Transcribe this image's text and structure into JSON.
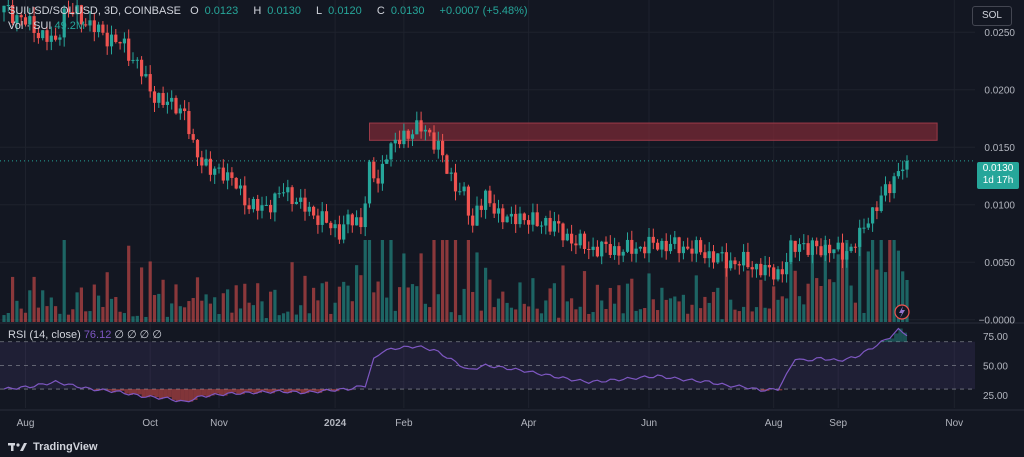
{
  "header": {
    "symbol": "SUIUSD/SOLUSD, 3D, COINBASE",
    "open_label": "O",
    "open": "0.0123",
    "high_label": "H",
    "high": "0.0130",
    "low_label": "L",
    "low": "0.0120",
    "close_label": "C",
    "close": "0.0130",
    "change": "+0.0007 (+5.48%)",
    "vol_label": "Vol · SUI",
    "vol_value": "49.2M"
  },
  "currency_button": "SOL",
  "price_badge": {
    "price": "0.0130",
    "countdown": "1d 17h"
  },
  "rsi_legend": {
    "label": "RSI (14, close)",
    "value": "76.12",
    "extras": "∅ ∅ ∅ ∅"
  },
  "brand": "TradingView",
  "colors": {
    "up": "#26a69a",
    "down": "#ef5350",
    "rsi": "#7e57c2",
    "zone": "#7a2a36",
    "background": "#131722"
  },
  "chart_data": [
    {
      "type": "candlestick",
      "title": "SUIUSD/SOLUSD, 3D, COINBASE",
      "y_ticks": [
        "0.0250",
        "0.0200",
        "0.0150",
        "0.0100",
        "0.0050",
        "−0.0000"
      ],
      "ylim": [
        -0.0002,
        0.0278
      ],
      "x_ticks": [
        "Aug",
        "Oct",
        "Nov",
        "2024",
        "Feb",
        "Apr",
        "Jun",
        "Aug",
        "Sep",
        "Nov"
      ],
      "resistance_zone": {
        "from": 0.0156,
        "to": 0.0171
      },
      "close_anchors": [
        [
          0,
          0.027
        ],
        [
          4,
          0.0262
        ],
        [
          8,
          0.025
        ],
        [
          12,
          0.024
        ],
        [
          14,
          0.0268
        ],
        [
          17,
          0.0266
        ],
        [
          20,
          0.0256
        ],
        [
          24,
          0.0246
        ],
        [
          28,
          0.0238
        ],
        [
          31,
          0.0222
        ],
        [
          34,
          0.02
        ],
        [
          37,
          0.0188
        ],
        [
          40,
          0.0188
        ],
        [
          42,
          0.0178
        ],
        [
          44,
          0.015
        ],
        [
          46,
          0.014
        ],
        [
          48,
          0.0128
        ],
        [
          51,
          0.013
        ],
        [
          54,
          0.0116
        ],
        [
          57,
          0.01
        ],
        [
          60,
          0.0096
        ],
        [
          63,
          0.0105
        ],
        [
          65,
          0.0112
        ],
        [
          67,
          0.0108
        ],
        [
          69,
          0.01
        ],
        [
          71,
          0.0094
        ],
        [
          74,
          0.0088
        ],
        [
          76,
          0.008
        ],
        [
          78,
          0.0078
        ],
        [
          80,
          0.0086
        ],
        [
          83,
          0.0084
        ],
        [
          85,
          0.013
        ],
        [
          87,
          0.0118
        ],
        [
          89,
          0.0148
        ],
        [
          91,
          0.0152
        ],
        [
          93,
          0.016
        ],
        [
          95,
          0.0165
        ],
        [
          97,
          0.0166
        ],
        [
          99,
          0.0162
        ],
        [
          101,
          0.015
        ],
        [
          103,
          0.013
        ],
        [
          105,
          0.0118
        ],
        [
          107,
          0.0108
        ],
        [
          109,
          0.008
        ],
        [
          110,
          0.01
        ],
        [
          112,
          0.0105
        ],
        [
          114,
          0.0095
        ],
        [
          116,
          0.0092
        ],
        [
          118,
          0.0085
        ],
        [
          120,
          0.009
        ],
        [
          122,
          0.0088
        ],
        [
          124,
          0.0082
        ],
        [
          126,
          0.0086
        ],
        [
          128,
          0.0082
        ],
        [
          130,
          0.0074
        ],
        [
          132,
          0.007
        ],
        [
          134,
          0.0066
        ],
        [
          136,
          0.0062
        ],
        [
          140,
          0.0062
        ],
        [
          144,
          0.006
        ],
        [
          148,
          0.0063
        ],
        [
          152,
          0.0066
        ],
        [
          156,
          0.0064
        ],
        [
          160,
          0.0062
        ],
        [
          163,
          0.0058
        ],
        [
          166,
          0.0054
        ],
        [
          169,
          0.005
        ],
        [
          172,
          0.005
        ],
        [
          175,
          0.0046
        ],
        [
          177,
          0.0042
        ],
        [
          179,
          0.0041
        ],
        [
          181,
          0.0042
        ],
        [
          183,
          0.006
        ],
        [
          185,
          0.0068
        ],
        [
          187,
          0.0061
        ],
        [
          190,
          0.0063
        ],
        [
          193,
          0.006
        ],
        [
          195,
          0.0059
        ],
        [
          197,
          0.0062
        ],
        [
          199,
          0.0072
        ],
        [
          201,
          0.009
        ],
        [
          203,
          0.0098
        ],
        [
          205,
          0.0112
        ],
        [
          207,
          0.0124
        ],
        [
          209,
          0.0133
        ],
        [
          210,
          0.013
        ]
      ],
      "volume_scale": [
        0,
        1
      ]
    },
    {
      "type": "line",
      "title": "RSI (14, close)",
      "y_ticks": [
        "75.00",
        "50.00",
        "25.00"
      ],
      "ylim": [
        14,
        85
      ],
      "bands": [
        30,
        70
      ],
      "rsi_anchors": [
        [
          0,
          30
        ],
        [
          6,
          32
        ],
        [
          12,
          36
        ],
        [
          16,
          33
        ],
        [
          20,
          30
        ],
        [
          26,
          28
        ],
        [
          32,
          24
        ],
        [
          38,
          22
        ],
        [
          42,
          19
        ],
        [
          46,
          24
        ],
        [
          52,
          26
        ],
        [
          58,
          27
        ],
        [
          64,
          28
        ],
        [
          70,
          27
        ],
        [
          76,
          29
        ],
        [
          80,
          30
        ],
        [
          84,
          33
        ],
        [
          86,
          55
        ],
        [
          88,
          62
        ],
        [
          92,
          65
        ],
        [
          96,
          66
        ],
        [
          100,
          63
        ],
        [
          104,
          55
        ],
        [
          108,
          46
        ],
        [
          112,
          50
        ],
        [
          116,
          48
        ],
        [
          120,
          46
        ],
        [
          126,
          42
        ],
        [
          132,
          38
        ],
        [
          136,
          36
        ],
        [
          140,
          37
        ],
        [
          146,
          39
        ],
        [
          152,
          41
        ],
        [
          158,
          38
        ],
        [
          164,
          36
        ],
        [
          168,
          33
        ],
        [
          172,
          32
        ],
        [
          176,
          29
        ],
        [
          180,
          30
        ],
        [
          182,
          42
        ],
        [
          184,
          56
        ],
        [
          186,
          54
        ],
        [
          190,
          56
        ],
        [
          194,
          54
        ],
        [
          198,
          57
        ],
        [
          202,
          65
        ],
        [
          206,
          74
        ],
        [
          208,
          80
        ],
        [
          210,
          76.12
        ]
      ]
    }
  ]
}
